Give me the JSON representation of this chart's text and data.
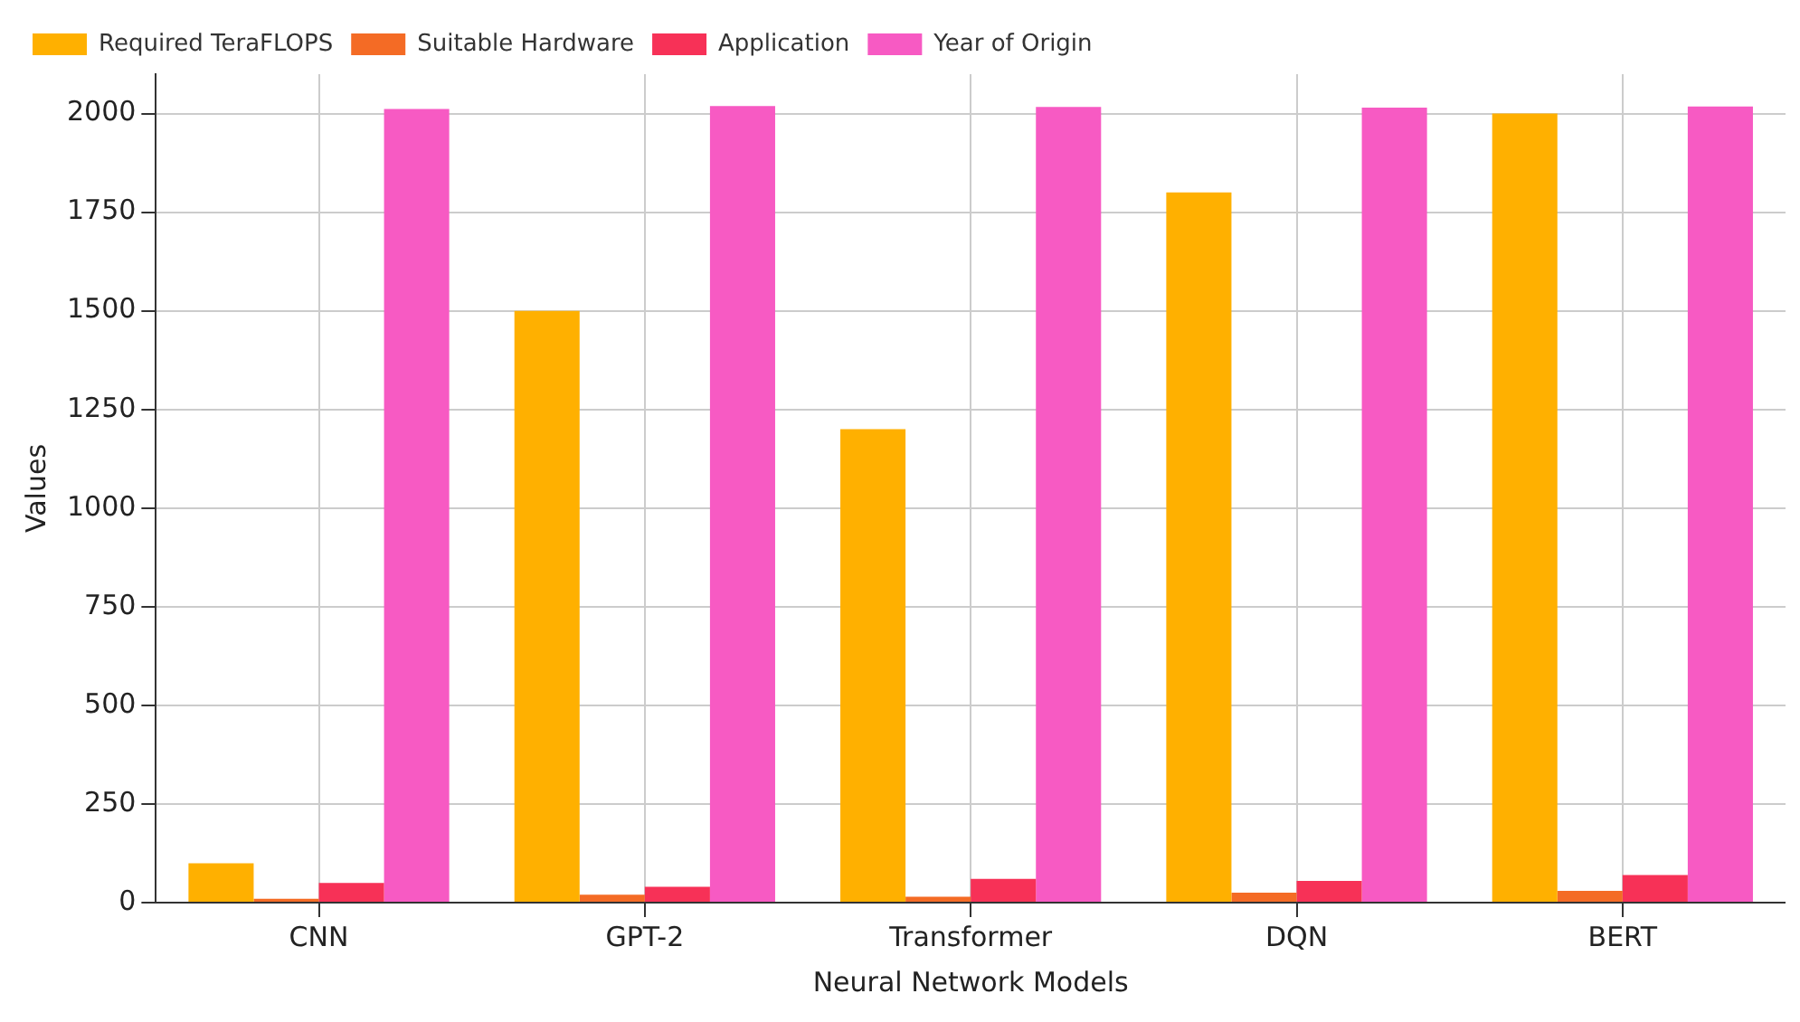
{
  "chart_data": {
    "type": "bar",
    "xlabel": "Neural Network Models",
    "ylabel": "Values",
    "categories": [
      "CNN",
      "GPT-2",
      "Transformer",
      "DQN",
      "BERT"
    ],
    "series": [
      {
        "name": "Required TeraFLOPS",
        "color": "#ffb000",
        "values": [
          100,
          1500,
          1200,
          1800,
          2000
        ]
      },
      {
        "name": "Suitable Hardware",
        "color": "#f46b25",
        "values": [
          10,
          20,
          15,
          25,
          30
        ]
      },
      {
        "name": "Application",
        "color": "#f73157",
        "values": [
          50,
          40,
          60,
          55,
          70
        ]
      },
      {
        "name": "Year of Origin",
        "color": "#f75ac3",
        "values": [
          2012,
          2019,
          2017,
          2015,
          2018
        ]
      }
    ],
    "ylim": [
      0,
      2100
    ],
    "yticks": [
      0,
      250,
      500,
      750,
      1000,
      1250,
      1500,
      1750,
      2000
    ],
    "grid": true,
    "legend": "top left"
  }
}
